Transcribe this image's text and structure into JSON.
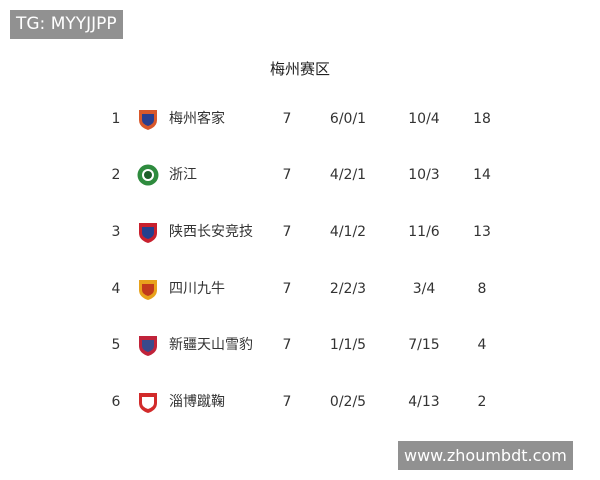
{
  "watermark_top": "TG: MYYJJPP",
  "watermark_bottom": "www.zhoumbdt.com",
  "header": {
    "title": "梅州赛区"
  },
  "table": {
    "rows": [
      [
        1,
        "梅州客家",
        7,
        "6/0/1",
        "10/4",
        18
      ],
      [
        2,
        "浙江",
        7,
        "4/2/1",
        "10/3",
        14
      ],
      [
        3,
        "陕西长安竞技",
        7,
        "4/1/2",
        "11/6",
        13
      ],
      [
        4,
        "四川九牛",
        7,
        "2/2/3",
        "3/4",
        8
      ],
      [
        5,
        "新疆天山雪豹",
        7,
        "1/1/5",
        "7/15",
        4
      ],
      [
        6,
        "淄博蹴鞠",
        7,
        "0/2/5",
        "4/13",
        2
      ]
    ]
  }
}
